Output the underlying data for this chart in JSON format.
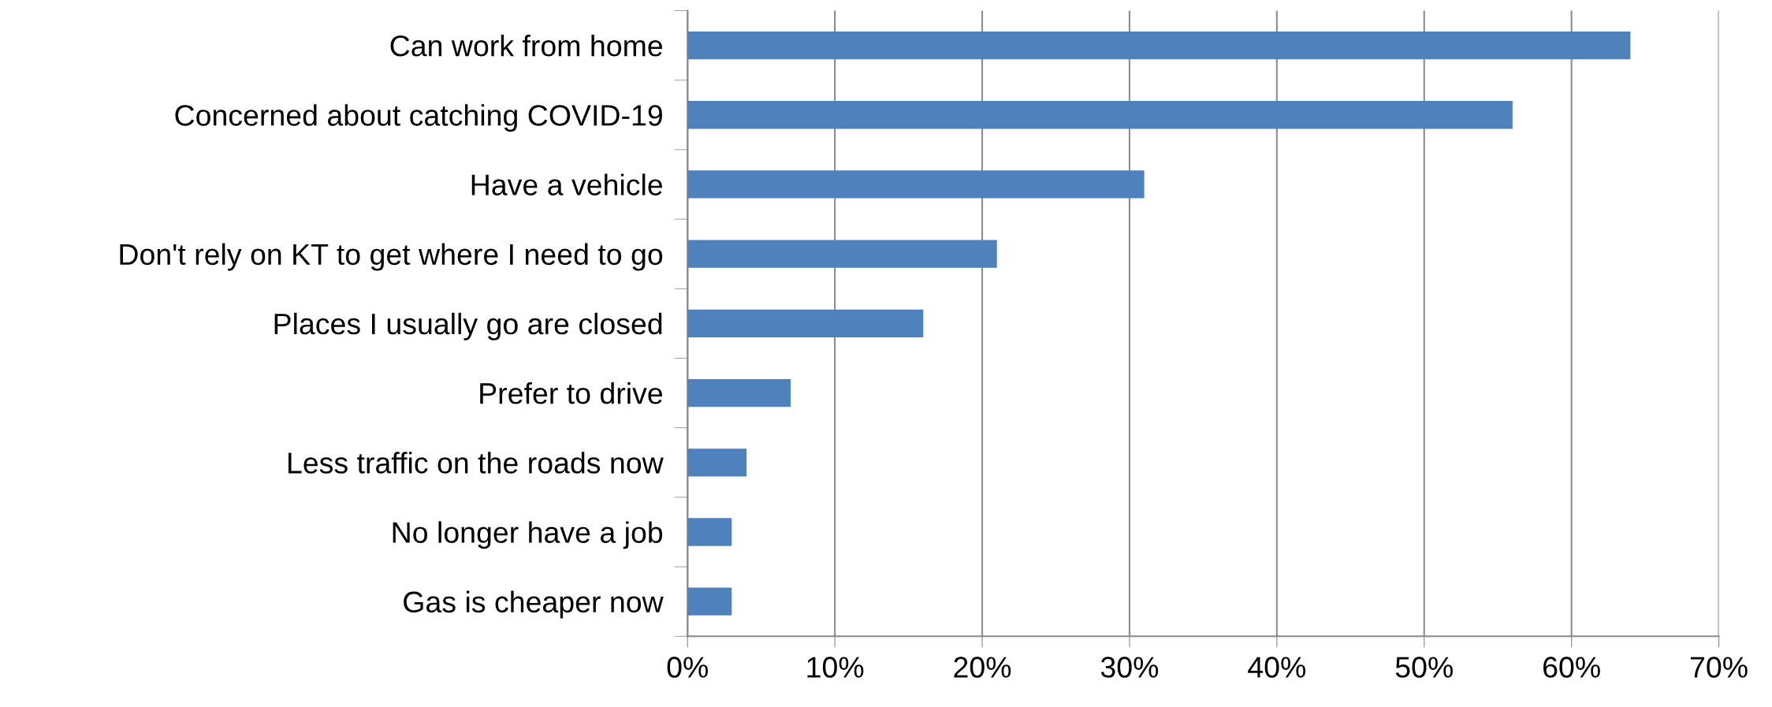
{
  "chart_data": {
    "type": "bar",
    "orientation": "horizontal",
    "categories": [
      "Can work from home",
      "Concerned about catching COVID-19",
      "Have a vehicle",
      "Don't rely on KT to get where I need to go",
      "Places I usually go are closed",
      "Prefer to drive",
      "Less traffic on the roads now",
      "No longer have a job",
      "Gas is cheaper now"
    ],
    "values": [
      64,
      56,
      31,
      21,
      16,
      7,
      4,
      3,
      3
    ],
    "color": "#4f81bd",
    "xlim": [
      0,
      70
    ],
    "xticks": [
      {
        "value": 0,
        "label": "0%"
      },
      {
        "value": 10,
        "label": "10%"
      },
      {
        "value": 20,
        "label": "20%"
      },
      {
        "value": 30,
        "label": "30%"
      },
      {
        "value": 40,
        "label": "40%"
      },
      {
        "value": 50,
        "label": "50%"
      },
      {
        "value": 60,
        "label": "60%"
      },
      {
        "value": 70,
        "label": "70%"
      }
    ],
    "grid": "x"
  }
}
